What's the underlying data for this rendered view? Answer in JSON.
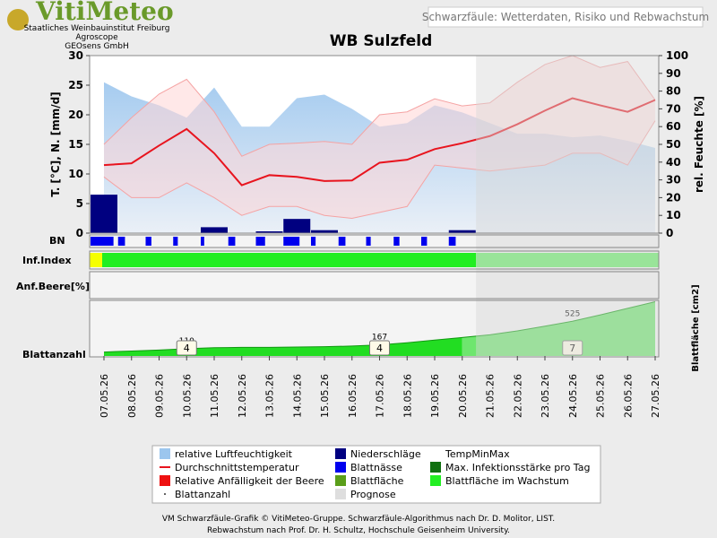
{
  "header": {
    "logo": "VitiMeteo",
    "org_lines": [
      "Staatliches Weinbauinstitut Freiburg",
      "Agroscope",
      "GEOsens GmbH"
    ],
    "topic": "Schwarzfäule: Wetterdaten, Risiko und Rebwachstum"
  },
  "chart_data": {
    "type": "line",
    "title": "WB Sulzfeld",
    "y_label": "T. [°C], N. [mm/d]",
    "y2_label": "rel. Feuchte [%]",
    "categories": [
      "07.05.26",
      "08.05.26",
      "09.05.26",
      "10.05.26",
      "11.05.26",
      "12.05.26",
      "13.05.26",
      "14.05.26",
      "15.05.26",
      "16.05.26",
      "17.05.26",
      "18.05.26",
      "19.05.26",
      "20.05.26",
      "21.05.26",
      "22.05.26",
      "23.05.26",
      "24.05.26",
      "25.05.26",
      "26.05.26",
      "27.05.26"
    ],
    "ylim": [
      0,
      30
    ],
    "yticks": [
      0,
      5,
      10,
      15,
      20,
      25,
      30
    ],
    "y2lim": [
      0,
      100
    ],
    "y2ticks": [
      0,
      10,
      20,
      30,
      40,
      50,
      60,
      70,
      80,
      90,
      100
    ],
    "forecast_from": "21.05.26",
    "series": [
      {
        "name": "relative Luftfeuchtigkeit",
        "color": "#9cc6ee",
        "axis": "y2",
        "values": [
          85,
          77,
          72,
          65,
          82,
          60,
          60,
          76,
          78,
          70,
          60,
          62,
          72,
          68,
          62,
          56,
          56,
          54,
          55,
          52,
          48
        ]
      },
      {
        "name": "TempMax",
        "color": "#f5a3a3",
        "values": [
          15,
          19.5,
          23.5,
          26,
          20.5,
          13,
          15,
          15.2,
          15.5,
          15,
          20,
          20.5,
          22.7,
          21.5,
          22,
          25.5,
          28.5,
          30,
          28,
          29,
          22.5
        ]
      },
      {
        "name": "TempMin",
        "color": "#f5a3a3",
        "values": [
          9.5,
          6,
          6,
          8.5,
          6,
          3,
          4.5,
          4.5,
          3,
          2.5,
          3.5,
          4.5,
          11.5,
          11,
          10.5,
          11,
          11.5,
          13.5,
          13.5,
          11.5,
          19
        ]
      },
      {
        "name": "Durchschnittstemperatur",
        "color": "#e8141e",
        "values": [
          11.5,
          11.8,
          14.8,
          17.6,
          13.5,
          8.1,
          9.8,
          9.5,
          8.8,
          8.9,
          11.9,
          12.4,
          14.2,
          15.2,
          16.4,
          18.4,
          20.7,
          22.8,
          21.6,
          20.5,
          22.5
        ]
      },
      {
        "name": "Niederschläge",
        "color": "#000080",
        "values": [
          6.5,
          0,
          0,
          0,
          1.0,
          0,
          0.3,
          2.4,
          0.5,
          0,
          0,
          0,
          0,
          0.5,
          0,
          0,
          0,
          0,
          0,
          0,
          0
        ]
      }
    ],
    "panels": {
      "bn": {
        "label": "BN",
        "color": "#0000ee",
        "wet_hours": [
          20,
          6,
          5,
          4,
          3,
          6,
          8,
          14,
          4,
          6,
          4,
          5,
          5,
          6
        ]
      },
      "inf_index": {
        "label": "Inf.Index",
        "colors": [
          "#f6ff00",
          "#22ee22",
          "#66ee66"
        ]
      },
      "berry": {
        "label": "Anf.Beere[%]"
      },
      "leaf": {
        "label": "Blattanzahl",
        "y_label": "Blattfläche [cm2]",
        "color": "#22dd22",
        "forecast_color": "#6ee66e",
        "ylim": [
          0,
          840
        ],
        "values": [
          60,
          75,
          90,
          110,
          125,
          130,
          130,
          135,
          140,
          150,
          167,
          200,
          240,
          280,
          320,
          380,
          450,
          525,
          620,
          720,
          820
        ],
        "labelled": [
          {
            "index": 3,
            "value": 110,
            "count": 4
          },
          {
            "index": 10,
            "value": 167,
            "count": 4
          },
          {
            "index": 17,
            "value": 525,
            "count": 7
          }
        ]
      }
    }
  },
  "legend": [
    {
      "name": "relative Luftfeuchtigkeit",
      "color": "#9cc6ee",
      "marker": "box"
    },
    {
      "name": "Durchschnittstemperatur",
      "color": "#e8141e",
      "marker": "line"
    },
    {
      "name": "Relative Anfälligkeit der Beere",
      "color": "#ee1111",
      "marker": "box"
    },
    {
      "name": "Blattanzahl",
      "color": "#333333",
      "marker": "dot"
    },
    {
      "name": "Niederschläge",
      "color": "#000080",
      "marker": "box"
    },
    {
      "name": "Blattnässe",
      "color": "#0000ee",
      "marker": "box"
    },
    {
      "name": "Blattfläche",
      "color": "#5a9e1a",
      "marker": "box"
    },
    {
      "name": "Prognose",
      "color": "#dedede",
      "marker": "box"
    },
    {
      "name": "TempMinMax",
      "color": "#ffffff",
      "marker": "none"
    },
    {
      "name": "Max. Infektionsstärke pro Tag",
      "color": "#107010",
      "marker": "box"
    },
    {
      "name": "Blattfläche im Wachstum",
      "color": "#22ee22",
      "marker": "box"
    }
  ],
  "footer": [
    "VM Schwarzfäule-Grafik © VitiMeteo-Gruppe. Schwarzfäule-Algorithmus nach Dr. D. Molitor, LIST.",
    "Rebwachstum nach Prof. Dr. H. Schultz, Hochschule Geisenheim University."
  ]
}
